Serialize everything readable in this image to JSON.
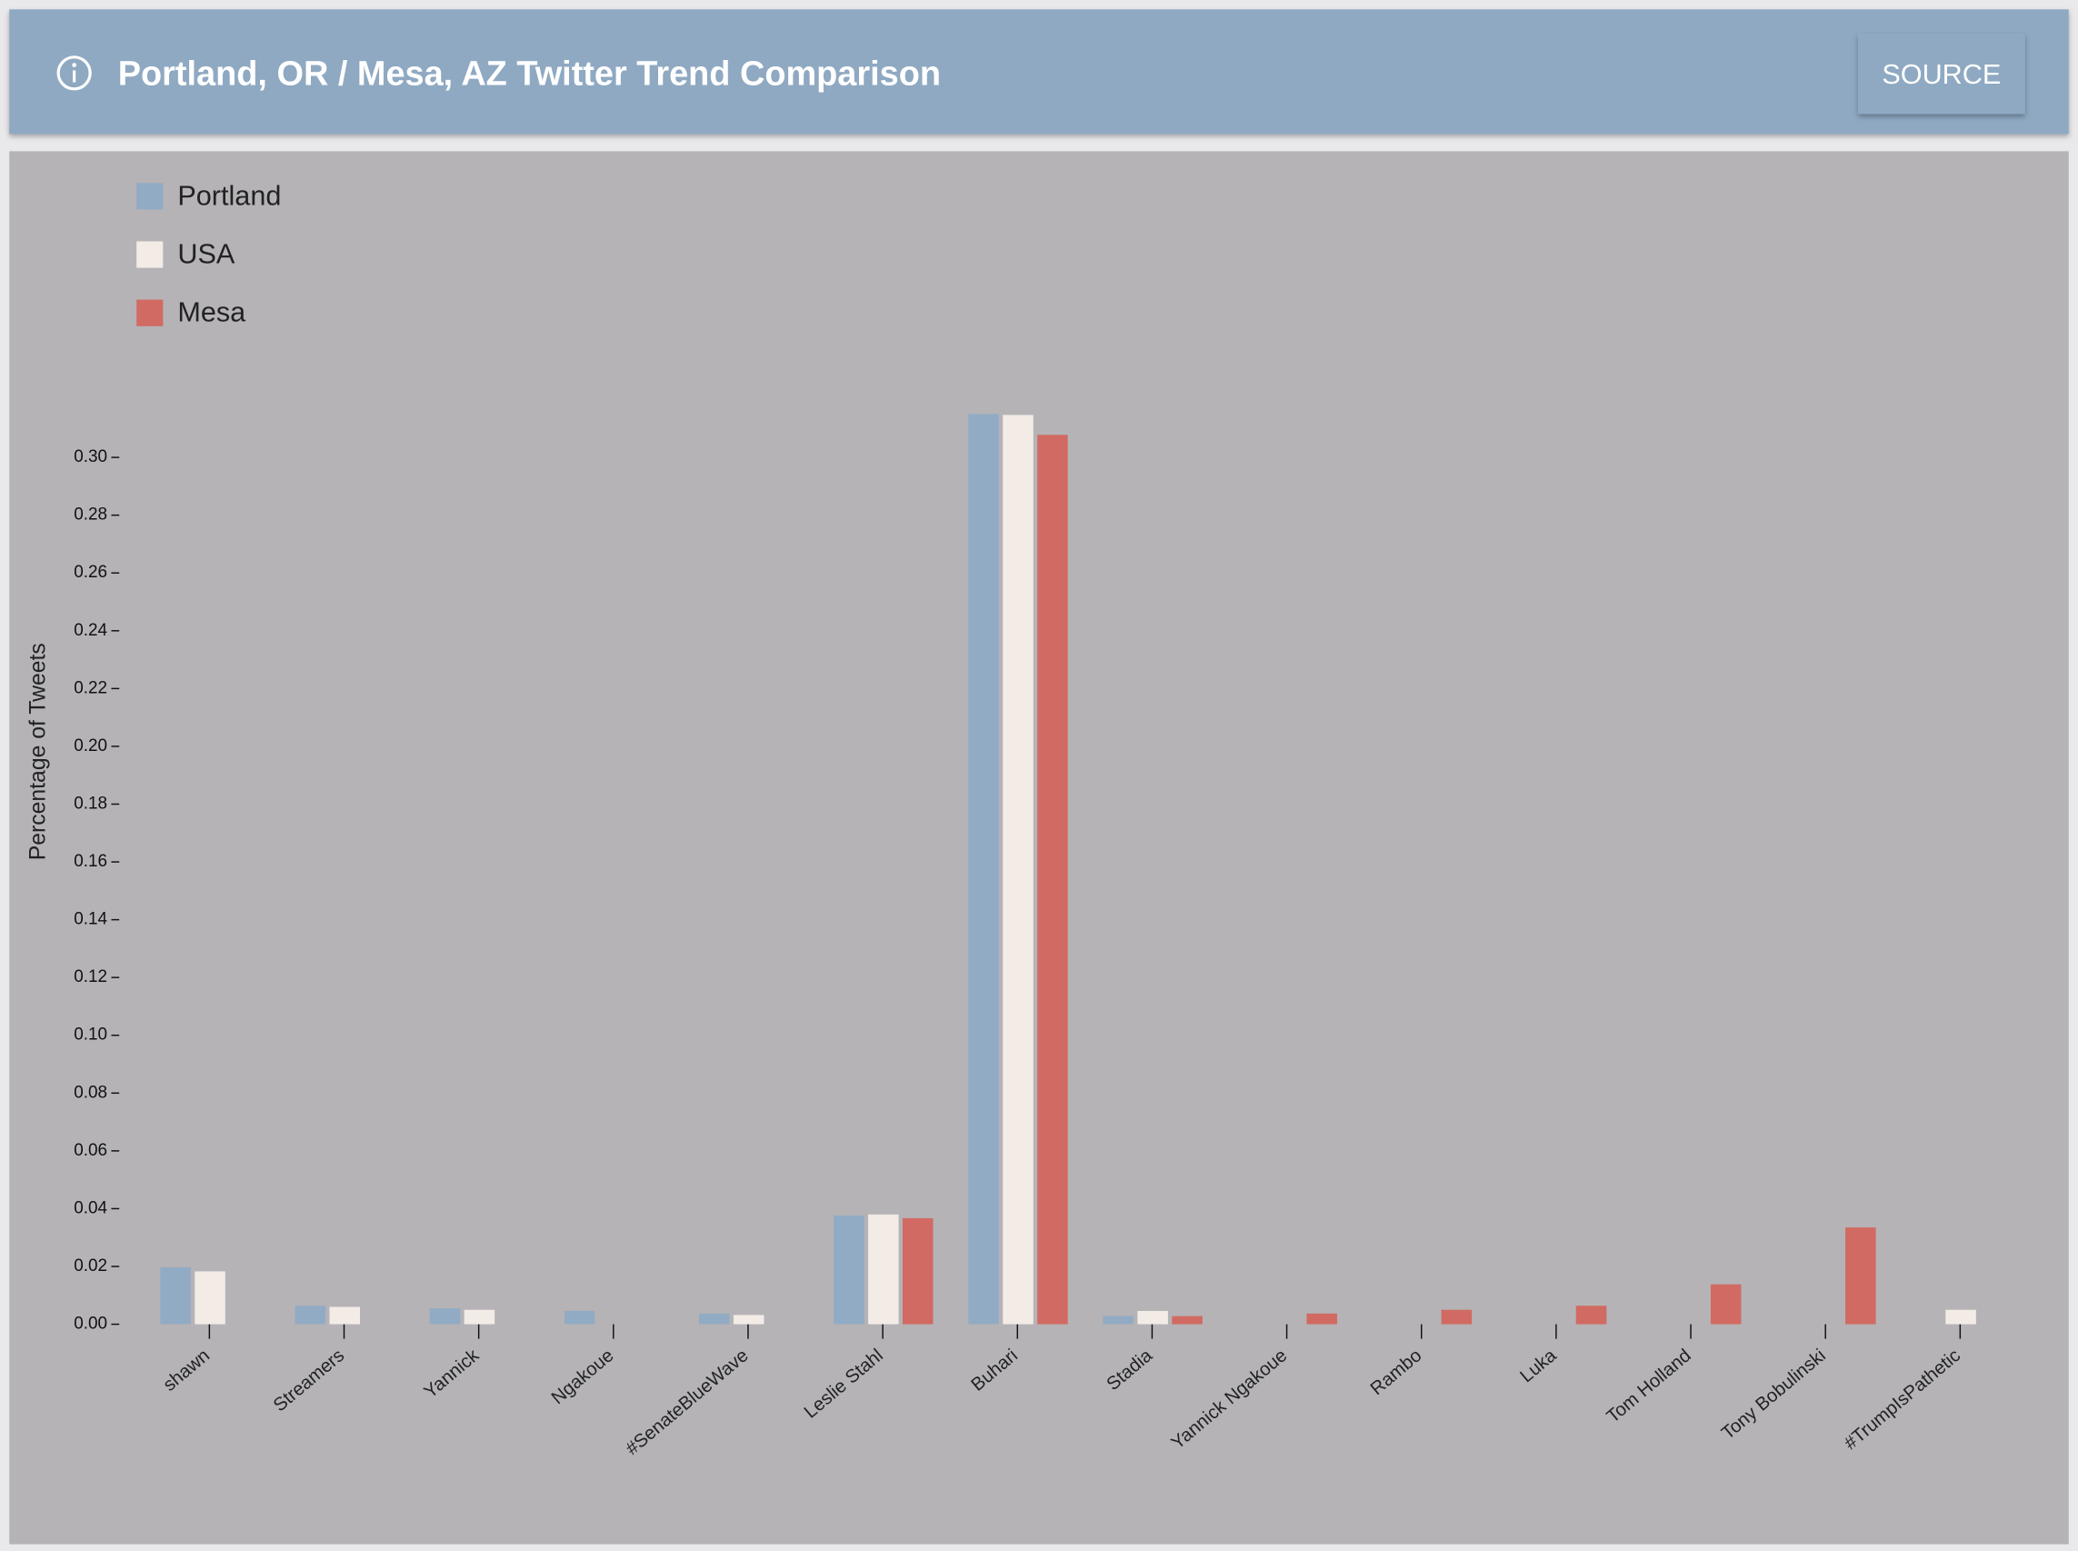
{
  "header": {
    "title": "Portland, OR / Mesa, AZ Twitter Trend Comparison",
    "button": "SOURCE"
  },
  "chart_data": {
    "type": "bar",
    "y_label": "Percentage of Tweets",
    "categories": [
      "shawn",
      "Streamers",
      "Yannick",
      "Ngakoue",
      "#SenateBlueWave",
      "Leslie Stahl",
      "Buhari",
      "Stadia",
      "Yannick Ngakoue",
      "Rambo",
      "Luka",
      "Tom Holland",
      "Tony Bobulinski",
      "#TrumpIsPathetic"
    ],
    "series": [
      {
        "name": "Portland",
        "color": "#92abc4",
        "values": [
          0.0197,
          0.0064,
          0.0055,
          0.0046,
          0.0037,
          0.0376,
          0.315,
          0.0028,
          null,
          null,
          null,
          null,
          null,
          null
        ]
      },
      {
        "name": "USA",
        "color": "#f2ebe6",
        "values": [
          0.0183,
          0.006,
          0.005,
          null,
          0.0032,
          0.038,
          0.3147,
          0.0046,
          null,
          null,
          null,
          null,
          null,
          0.005
        ]
      },
      {
        "name": "Mesa",
        "color": "#d16a62",
        "values": [
          null,
          null,
          null,
          null,
          null,
          0.0367,
          0.3078,
          0.0028,
          0.0037,
          0.005,
          0.0064,
          0.0138,
          0.0335,
          null
        ]
      }
    ],
    "ylim": [
      0,
      0.32
    ],
    "yticks": [
      {
        "value": 0,
        "label": "0.00"
      },
      {
        "value": 0.02,
        "label": "0.02"
      },
      {
        "value": 0.04,
        "label": "0.04"
      },
      {
        "value": 0.06,
        "label": "0.06"
      },
      {
        "value": 0.08,
        "label": "0.08"
      },
      {
        "value": 0.1,
        "label": "0.10"
      },
      {
        "value": 0.12,
        "label": "0.12"
      },
      {
        "value": 0.14,
        "label": "0.14"
      },
      {
        "value": 0.16,
        "label": "0.16"
      },
      {
        "value": 0.18,
        "label": "0.18"
      },
      {
        "value": 0.2,
        "label": "0.20"
      },
      {
        "value": 0.22,
        "label": "0.22"
      },
      {
        "value": 0.24,
        "label": "0.24"
      },
      {
        "value": 0.26,
        "label": "0.26"
      },
      {
        "value": 0.28,
        "label": "0.28"
      },
      {
        "value": 0.3,
        "label": "0.30"
      }
    ],
    "legend": "top-left"
  }
}
